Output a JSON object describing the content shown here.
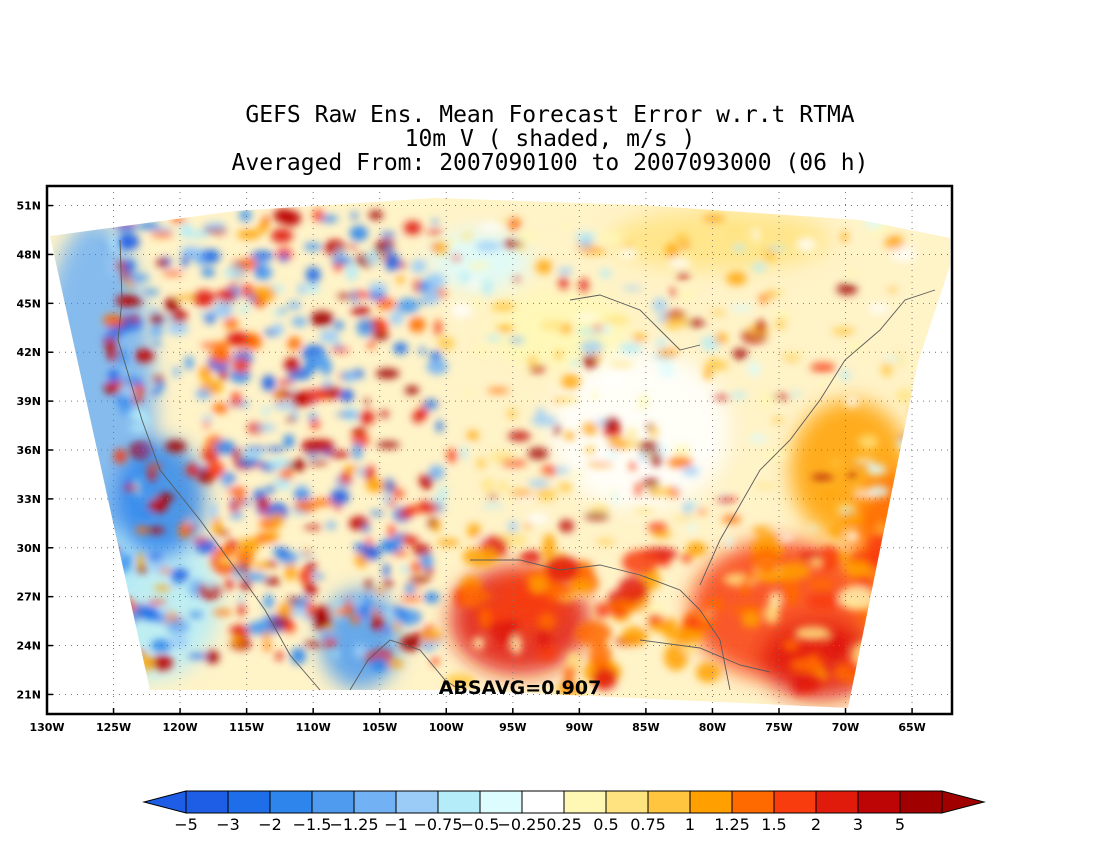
{
  "title": {
    "line1": "GEFS Raw Ens. Mean Forecast Error w.r.t RTMA",
    "line2": "10m V ( shaded, m/s )",
    "line3": "Averaged From: 2007090100 to 2007093000 (06 h)"
  },
  "map": {
    "lon_range": [
      -130,
      -62
    ],
    "lat_range": [
      19.8,
      52.2
    ],
    "lat_ticks": [
      "51N",
      "48N",
      "45N",
      "42N",
      "39N",
      "36N",
      "33N",
      "30N",
      "27N",
      "24N",
      "21N"
    ],
    "lon_ticks": [
      "130W",
      "125W",
      "120W",
      "115W",
      "110W",
      "105W",
      "100W",
      "95W",
      "90W",
      "85W",
      "80W",
      "75W",
      "70W",
      "65W"
    ],
    "annotation": "ABSAVG=0.907",
    "field_pattern": "west: mixed strong positive and negative; east: mostly weak positive; large positive over Gulf of Mexico and Atlantic"
  },
  "colorbar": {
    "labels": [
      "−5",
      "−3",
      "−2",
      "−1.5",
      "−1.25",
      "−1",
      "−0.75",
      "−0.5",
      "−0.25",
      "0.25",
      "0.5",
      "0.75",
      "1",
      "1.25",
      "1.5",
      "2",
      "3",
      "5"
    ],
    "colors": [
      "#1e5ee6",
      "#1f6ee9",
      "#2e86ec",
      "#4e9bef",
      "#72b1f3",
      "#9bccf8",
      "#b4ecf9",
      "#dcfcfe",
      "#ffffff",
      "#fff8b5",
      "#ffe380",
      "#ffc53f",
      "#ffa000",
      "#ff6a00",
      "#f83c0e",
      "#e01b0b",
      "#bd0506",
      "#a00000"
    ],
    "under_color": "#1e5ee6",
    "over_color": "#a00000"
  }
}
